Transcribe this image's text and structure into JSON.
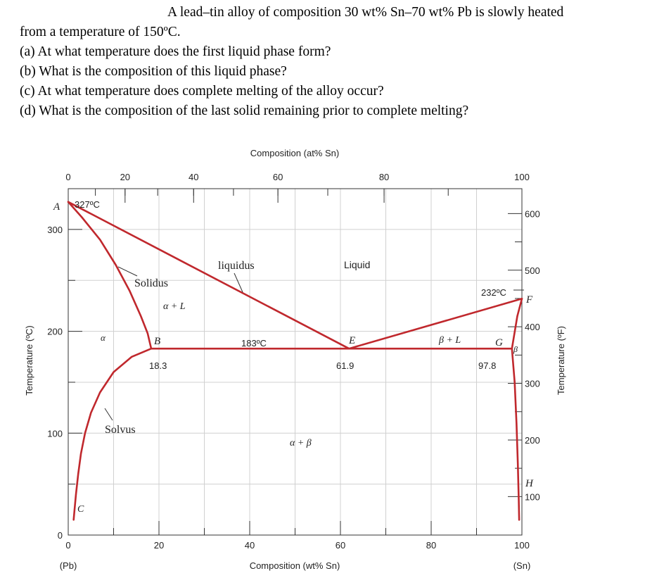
{
  "question": {
    "line1": "A lead–tin alloy of composition 30 wt% Sn–70 wt% Pb is slowly heated",
    "line2": "from a temperature of 150ºC.",
    "a": "(a) At what temperature does the first liquid phase form?",
    "b": "(b) What is the composition of this liquid phase?",
    "c": "(c) At what temperature does complete melting of the alloy occur?",
    "d": "(d) What is the composition of the last solid remaining prior to complete melting?"
  },
  "chart_data": {
    "type": "line",
    "xlabel": "Composition (wt% Sn)",
    "x2label": "Composition (at% Sn)",
    "ylabel": "Temperature (ºC)",
    "y2label": "Temperature (ºF)",
    "xlim": [
      0,
      100
    ],
    "ylim": [
      0,
      340
    ],
    "x_ticks": [
      "0",
      "20",
      "40",
      "60",
      "80",
      "100"
    ],
    "x_tick_values": [
      0,
      20,
      40,
      60,
      80,
      100
    ],
    "x_end_labels": [
      "(Pb)",
      "(Sn)"
    ],
    "y_ticks": [
      "0",
      "100",
      "200",
      "300"
    ],
    "y_tick_values": [
      0,
      100,
      200,
      300
    ],
    "at_ticks": [
      "0",
      "20",
      "40",
      "60",
      "80",
      "100"
    ],
    "at_tick_values": [
      0,
      20,
      40,
      60,
      80,
      100
    ],
    "f_ticks": [
      "100",
      "200",
      "300",
      "400",
      "500",
      "600"
    ],
    "f_tick_values": [
      100,
      200,
      300,
      400,
      500,
      600
    ],
    "grid": true,
    "line_color": "#c0282d",
    "series": [
      {
        "key": "liquidus_left",
        "x": [
          0,
          61.9
        ],
        "y": [
          327,
          183
        ]
      },
      {
        "key": "liquidus_right",
        "x": [
          61.9,
          100
        ],
        "y": [
          183,
          232
        ]
      },
      {
        "key": "solidus_alpha",
        "x": [
          0,
          3,
          7,
          10.5,
          13.5,
          16,
          17.5,
          18.3
        ],
        "y": [
          327,
          312,
          290,
          265,
          240,
          215,
          198,
          183
        ]
      },
      {
        "key": "eutectic",
        "x": [
          18.3,
          97.8
        ],
        "y": [
          183,
          183
        ]
      },
      {
        "key": "solvus_alpha",
        "x": [
          18.3,
          14,
          10,
          7,
          5,
          3.7,
          2.8,
          2.2,
          1.7,
          1.4,
          1.2
        ],
        "y": [
          183,
          175,
          160,
          140,
          120,
          100,
          80,
          60,
          40,
          25,
          15
        ]
      },
      {
        "key": "solidus_beta",
        "x": [
          97.8,
          99,
          100
        ],
        "y": [
          183,
          215,
          232
        ]
      },
      {
        "key": "solvus_beta",
        "x": [
          97.8,
          98.4,
          98.8,
          99.1,
          99.3,
          99.4
        ],
        "y": [
          183,
          150,
          110,
          70,
          35,
          15
        ]
      }
    ],
    "annotations": {
      "A": "A",
      "temp_A": "327ºC",
      "B": "B",
      "comp_B": "18.3",
      "C": "C",
      "E": "E",
      "comp_E": "61.9",
      "F": "F",
      "temp_F": "232ºC",
      "G": "G",
      "comp_G": "97.8",
      "H": "H",
      "eutectic_temp": "183ºC",
      "alpha": "α",
      "beta": "β",
      "alpha_L": "α + L",
      "beta_L": "β + L",
      "alpha_beta": "α + β",
      "liquid": "Liquid",
      "liquidus": "liquidus",
      "solidus": "Solidus",
      "solvus": "Solvus"
    }
  }
}
